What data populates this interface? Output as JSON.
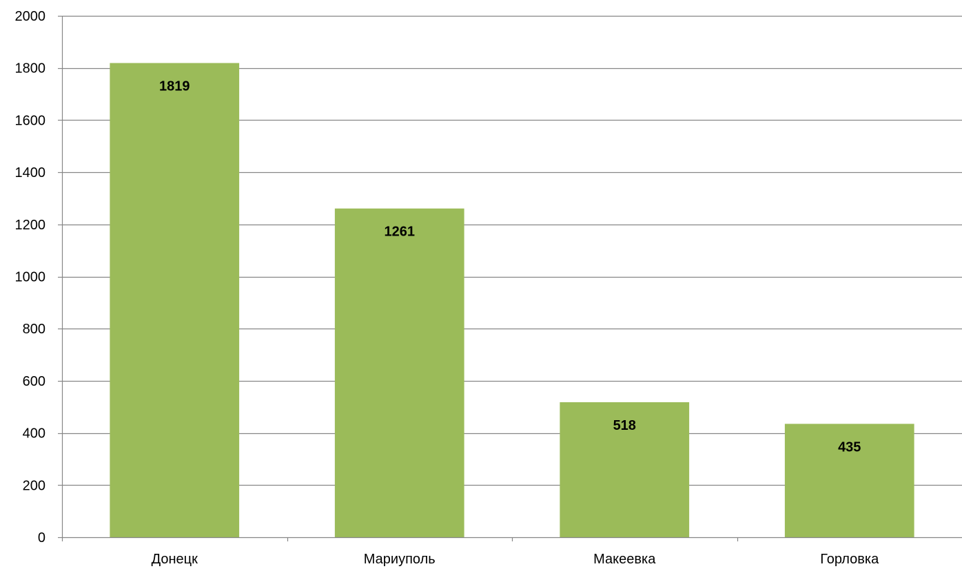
{
  "chart_data": {
    "type": "bar",
    "title": "",
    "xlabel": "",
    "ylabel": "",
    "categories": [
      "Донецк",
      "Мариуполь",
      "Макеевка",
      "Горловка"
    ],
    "values": [
      1819,
      1261,
      518,
      435
    ],
    "data_labels": [
      "1819",
      "1261",
      "518",
      "435"
    ],
    "ylim": [
      0,
      2000
    ],
    "yticks": [
      0,
      200,
      400,
      600,
      800,
      1000,
      1200,
      1400,
      1600,
      1800,
      2000
    ],
    "ytick_labels": [
      "0",
      "200",
      "400",
      "600",
      "800",
      "1000",
      "1200",
      "1400",
      "1600",
      "1800",
      "2000"
    ],
    "grid": true,
    "legend": "none",
    "colors": {
      "bar": "#9BBB59",
      "grid": "#868686",
      "axis": "#868686",
      "text": "#000000"
    }
  }
}
